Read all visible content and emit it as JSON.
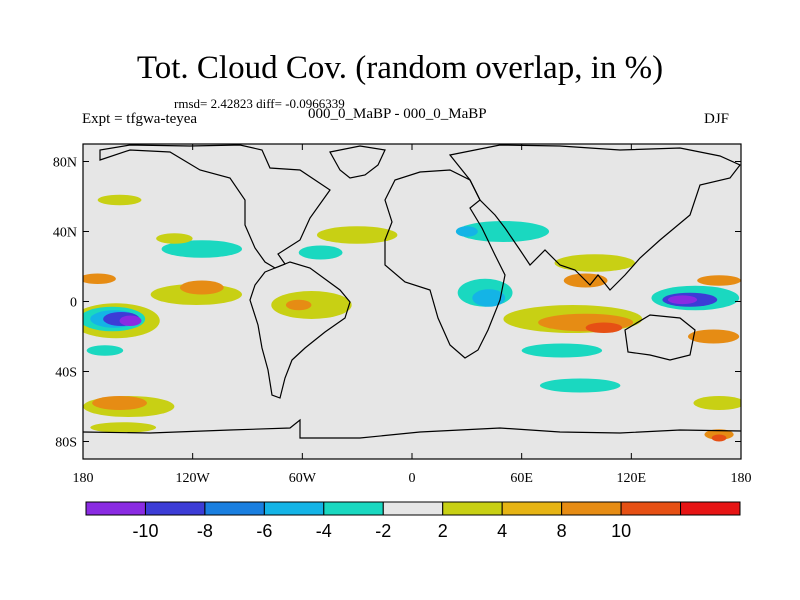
{
  "header": {
    "title": "Tot. Cloud Cov. (random overlap, in %)",
    "stats": "rmsd= 2.42823 diff= -0.0966339",
    "expt": "Expt = tfgwa-teyea",
    "case": "000_0_MaBP - 000_0_MaBP",
    "season": "DJF"
  },
  "axes": {
    "lat_ticks": [
      {
        "label": "80N",
        "lat": 80
      },
      {
        "label": "40N",
        "lat": 40
      },
      {
        "label": "0",
        "lat": 0
      },
      {
        "label": "40S",
        "lat": -40
      },
      {
        "label": "80S",
        "lat": -80
      }
    ],
    "lon_ticks": [
      {
        "label": "180",
        "lon": -180
      },
      {
        "label": "120W",
        "lon": -120
      },
      {
        "label": "60W",
        "lon": -60
      },
      {
        "label": "0",
        "lon": 0
      },
      {
        "label": "60E",
        "lon": 60
      },
      {
        "label": "120E",
        "lon": 120
      },
      {
        "label": "180",
        "lon": 180
      }
    ]
  },
  "colorbar": {
    "colors": [
      "#8a2be2",
      "#3c3cd6",
      "#1a7fe0",
      "#14b4e6",
      "#1ad8c0",
      "#e6e6e6",
      "#c8d014",
      "#e6b414",
      "#e68c14",
      "#e65014",
      "#e61414"
    ],
    "labels": [
      {
        "text": "-10",
        "boundary": 1
      },
      {
        "text": "-8",
        "boundary": 2
      },
      {
        "text": "-6",
        "boundary": 3
      },
      {
        "text": "-4",
        "boundary": 4
      },
      {
        "text": "-2",
        "boundary": 5
      },
      {
        "text": "2",
        "boundary": 6
      },
      {
        "text": "4",
        "boundary": 7
      },
      {
        "text": "8",
        "boundary": 8
      },
      {
        "text": "10",
        "boundary": 9
      }
    ]
  },
  "chart_data": {
    "type": "heatmap",
    "xlim": [
      -180,
      180
    ],
    "ylim": [
      -90,
      90
    ],
    "levels": [
      -10,
      -8,
      -6,
      -4,
      -2,
      2,
      4,
      8,
      10
    ],
    "background_color": "#e6e6e6",
    "anomaly_regions": [
      {
        "lon": -162,
        "lat": -11,
        "rlon": 24,
        "rlat": 10,
        "color": "#c8d014"
      },
      {
        "lon": -164,
        "lat": -10,
        "rlon": 18,
        "rlat": 7,
        "color": "#1ad8c0"
      },
      {
        "lon": -163,
        "lat": -10,
        "rlon": 13,
        "rlat": 5,
        "color": "#14b4e6"
      },
      {
        "lon": -159,
        "lat": -10,
        "rlon": 10,
        "rlat": 4,
        "color": "#3c3cd6"
      },
      {
        "lon": -154,
        "lat": -11,
        "rlon": 6,
        "rlat": 3,
        "color": "#8a2be2"
      },
      {
        "lon": -172,
        "lat": 13,
        "rlon": 10,
        "rlat": 3,
        "color": "#e68c14"
      },
      {
        "lon": -168,
        "lat": -28,
        "rlon": 10,
        "rlat": 3,
        "color": "#1ad8c0"
      },
      {
        "lon": -155,
        "lat": -60,
        "rlon": 25,
        "rlat": 6,
        "color": "#c8d014"
      },
      {
        "lon": -160,
        "lat": -58,
        "rlon": 15,
        "rlat": 4,
        "color": "#e68c14"
      },
      {
        "lon": -158,
        "lat": -72,
        "rlon": 18,
        "rlat": 3,
        "color": "#c8d014"
      },
      {
        "lon": -115,
        "lat": 30,
        "rlon": 22,
        "rlat": 5,
        "color": "#1ad8c0"
      },
      {
        "lon": -130,
        "lat": 36,
        "rlon": 10,
        "rlat": 3,
        "color": "#c8d014"
      },
      {
        "lon": -160,
        "lat": 58,
        "rlon": 12,
        "rlat": 3,
        "color": "#c8d014"
      },
      {
        "lon": -118,
        "lat": 4,
        "rlon": 25,
        "rlat": 6,
        "color": "#c8d014"
      },
      {
        "lon": -115,
        "lat": 8,
        "rlon": 12,
        "rlat": 4,
        "color": "#e68c14"
      },
      {
        "lon": -55,
        "lat": -2,
        "rlon": 22,
        "rlat": 8,
        "color": "#c8d014"
      },
      {
        "lon": -62,
        "lat": -2,
        "rlon": 7,
        "rlat": 3,
        "color": "#e68c14"
      },
      {
        "lon": -30,
        "lat": 38,
        "rlon": 22,
        "rlat": 5,
        "color": "#c8d014"
      },
      {
        "lon": -50,
        "lat": 28,
        "rlon": 12,
        "rlat": 4,
        "color": "#1ad8c0"
      },
      {
        "lon": 40,
        "lat": 5,
        "rlon": 15,
        "rlat": 8,
        "color": "#1ad8c0"
      },
      {
        "lon": 42,
        "lat": 2,
        "rlon": 9,
        "rlat": 5,
        "color": "#14b4e6"
      },
      {
        "lon": 50,
        "lat": 40,
        "rlon": 25,
        "rlat": 6,
        "color": "#1ad8c0"
      },
      {
        "lon": 30,
        "lat": 40,
        "rlon": 6,
        "rlat": 3,
        "color": "#14b4e6"
      },
      {
        "lon": 95,
        "lat": 12,
        "rlon": 12,
        "rlat": 4,
        "color": "#e68c14"
      },
      {
        "lon": 100,
        "lat": 22,
        "rlon": 22,
        "rlat": 5,
        "color": "#c8d014"
      },
      {
        "lon": 88,
        "lat": -10,
        "rlon": 38,
        "rlat": 8,
        "color": "#c8d014"
      },
      {
        "lon": 95,
        "lat": -12,
        "rlon": 26,
        "rlat": 5,
        "color": "#e68c14"
      },
      {
        "lon": 105,
        "lat": -15,
        "rlon": 10,
        "rlat": 3,
        "color": "#e65014"
      },
      {
        "lon": 82,
        "lat": -28,
        "rlon": 22,
        "rlat": 4,
        "color": "#1ad8c0"
      },
      {
        "lon": 92,
        "lat": -48,
        "rlon": 22,
        "rlat": 4,
        "color": "#1ad8c0"
      },
      {
        "lon": 155,
        "lat": 2,
        "rlon": 24,
        "rlat": 7,
        "color": "#1ad8c0"
      },
      {
        "lon": 152,
        "lat": 1,
        "rlon": 15,
        "rlat": 4,
        "color": "#3c3cd6"
      },
      {
        "lon": 148,
        "lat": 1,
        "rlon": 8,
        "rlat": 2.5,
        "color": "#8a2be2"
      },
      {
        "lon": 168,
        "lat": 12,
        "rlon": 12,
        "rlat": 3,
        "color": "#e68c14"
      },
      {
        "lon": 165,
        "lat": -20,
        "rlon": 14,
        "rlat": 4,
        "color": "#e68c14"
      },
      {
        "lon": 168,
        "lat": -58,
        "rlon": 14,
        "rlat": 4,
        "color": "#c8d014"
      },
      {
        "lon": 168,
        "lat": -76,
        "rlon": 8,
        "rlat": 3,
        "color": "#e68c14"
      },
      {
        "lon": 168,
        "lat": -78,
        "rlon": 4,
        "rlat": 2,
        "color": "#e65014"
      }
    ]
  }
}
